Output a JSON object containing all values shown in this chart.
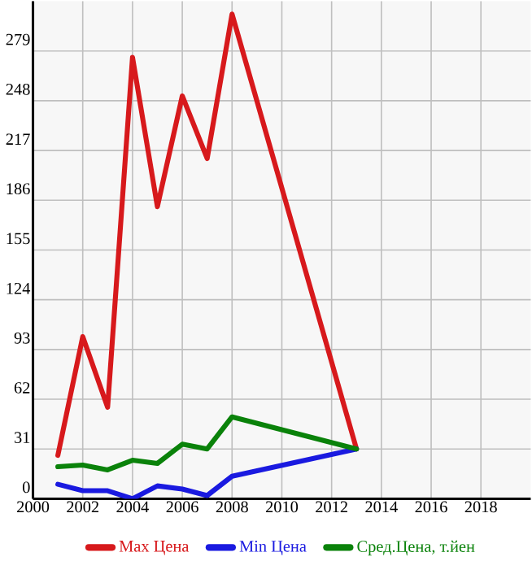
{
  "chart_data": {
    "type": "line",
    "x": [
      2001,
      2002,
      2003,
      2004,
      2005,
      2006,
      2007,
      2008,
      2013
    ],
    "series": [
      {
        "name": "Max Цена",
        "color": "#d7191c",
        "values": [
          27,
          101,
          57,
          275,
          182,
          251,
          212,
          302,
          31
        ]
      },
      {
        "name": "Min Цена",
        "color": "#1a1ae0",
        "values": [
          9,
          5,
          5,
          0,
          8,
          6,
          2,
          14,
          31
        ]
      },
      {
        "name": "Сред.Цена, т.йен",
        "color": "#0a820a",
        "values": [
          20,
          21,
          18,
          24,
          22,
          34,
          31,
          51,
          31
        ]
      }
    ],
    "xlim": [
      2000,
      2020
    ],
    "ylim": [
      0,
      310
    ],
    "xticks": [
      2000,
      2002,
      2004,
      2006,
      2008,
      2010,
      2012,
      2014,
      2016,
      2018
    ],
    "yticks": [
      0,
      31,
      62,
      93,
      124,
      155,
      186,
      217,
      248,
      279
    ],
    "grid": true,
    "legend": "bottom",
    "marker": "none",
    "line_style": "solid"
  }
}
